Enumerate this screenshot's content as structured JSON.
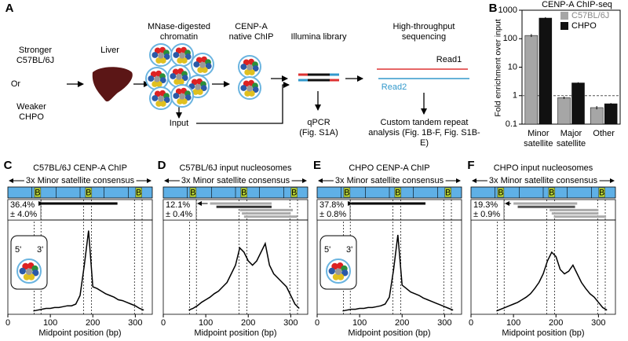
{
  "panel_labels": [
    "A",
    "B",
    "C",
    "D",
    "E",
    "F"
  ],
  "schematic": {
    "stronger": "Stronger C57BL/6J",
    "or": "Or",
    "weaker": "Weaker CHPO",
    "liver": "Liver",
    "chromatin": "MNase-digested chromatin",
    "chip": "CENP-A native ChIP",
    "library": "Illumina library",
    "qpcr": "qPCR (Fig. S1A)",
    "input": "Input",
    "sequencing": "High-throughput sequencing",
    "read1": "Read1",
    "read2": "Read2",
    "analysis": "Custom tandem repeat analysis (Fig. 1B-F, Fig. S1B-E)"
  },
  "chart_data": [
    {
      "type": "bar",
      "title": "CENP-A ChIP-seq",
      "ylabel": "Fold enrichment over input",
      "log_scale": true,
      "categories": [
        "Minor satellite",
        "Major satellite",
        "Other"
      ],
      "series": [
        {
          "name": "C57BL/6J",
          "color": "#a6a6a6",
          "values": [
            130,
            0.85,
            0.38
          ],
          "errors": [
            15,
            0.08,
            0.05
          ]
        },
        {
          "name": "CHPO",
          "color": "#111111",
          "values": [
            530,
            2.8,
            0.52
          ],
          "errors": [
            40,
            0.15,
            0.03
          ]
        }
      ],
      "ylim": [
        0.1,
        1000
      ],
      "yticks": [
        0.1,
        1,
        10,
        100,
        1000
      ],
      "reference_line": 1
    },
    {
      "type": "line",
      "title": "C57BL/6J CENP-A ChIP",
      "consensus_label": "3x Minor satellite consensus",
      "consensus_marker": "B",
      "marker_positions": [
        70,
        190,
        308
      ],
      "percent": "36.4%",
      "error": "± 4.0%",
      "inset_labels": [
        "5'",
        "3'"
      ],
      "fragments": [
        {
          "start": 78,
          "end": 258,
          "color": "#000000"
        }
      ],
      "guide_lines": [
        62,
        78,
        178,
        197,
        298,
        316
      ],
      "x": [
        60,
        70,
        80,
        90,
        100,
        110,
        120,
        130,
        140,
        150,
        160,
        170,
        180,
        190,
        200,
        210,
        220,
        230,
        240,
        250,
        260,
        270,
        280,
        290,
        300,
        310,
        320
      ],
      "series": [
        {
          "color": "#000000",
          "values": [
            2,
            3,
            4,
            5,
            5,
            6,
            6,
            7,
            8,
            8,
            10,
            20,
            55,
            95,
            30,
            28,
            25,
            22,
            20,
            18,
            15,
            14,
            12,
            10,
            8,
            5,
            3
          ]
        }
      ],
      "xlim": [
        0,
        340
      ],
      "xticks": [
        0,
        100,
        200,
        300
      ],
      "ylim": [
        0,
        100
      ],
      "xlabel": "Midpoint position (bp)"
    },
    {
      "type": "line",
      "title": "C57BL/6J input nucleosomes",
      "consensus_label": "3x Minor satellite consensus",
      "consensus_marker": "B",
      "marker_positions": [
        70,
        190,
        308
      ],
      "percent": "12.1%",
      "error": "± 0.4%",
      "fragments": [
        {
          "start": 110,
          "end": 255,
          "color": "#aaaaaa"
        },
        {
          "start": 125,
          "end": 255,
          "color": "#333333"
        },
        {
          "start": 180,
          "end": 305,
          "color": "#aaaaaa"
        },
        {
          "start": 185,
          "end": 300,
          "color": "#aaaaaa"
        },
        {
          "start": 190,
          "end": 315,
          "color": "#aaaaaa"
        }
      ],
      "guide_lines": [
        62,
        78,
        178,
        197,
        298,
        316
      ],
      "x": [
        60,
        70,
        80,
        90,
        100,
        110,
        120,
        130,
        140,
        150,
        160,
        170,
        180,
        190,
        200,
        210,
        220,
        230,
        240,
        250,
        260,
        270,
        280,
        290,
        300,
        310,
        320
      ],
      "series": [
        {
          "color": "#000000",
          "values": [
            3,
            5,
            8,
            12,
            15,
            18,
            22,
            25,
            30,
            35,
            45,
            55,
            75,
            70,
            60,
            55,
            60,
            70,
            80,
            55,
            45,
            40,
            35,
            30,
            20,
            10,
            5
          ]
        }
      ],
      "xlim": [
        0,
        340
      ],
      "xticks": [
        0,
        100,
        200,
        300
      ],
      "ylim": [
        0,
        100
      ],
      "xlabel": "Midpoint position (bp)"
    },
    {
      "type": "line",
      "title": "CHPO CENP-A ChIP",
      "consensus_label": "3x Minor satellite consensus",
      "consensus_marker": "B",
      "marker_positions": [
        70,
        190,
        308
      ],
      "percent": "37.8%",
      "error": "± 0.8%",
      "inset_labels": [
        "5'",
        "3'"
      ],
      "fragments": [
        {
          "start": 80,
          "end": 255,
          "color": "#000000"
        }
      ],
      "guide_lines": [
        62,
        78,
        178,
        197,
        298,
        316
      ],
      "x": [
        60,
        70,
        80,
        90,
        100,
        110,
        120,
        130,
        140,
        150,
        160,
        170,
        180,
        190,
        200,
        210,
        220,
        230,
        240,
        250,
        260,
        270,
        280,
        290,
        300,
        310,
        320
      ],
      "series": [
        {
          "color": "#000000",
          "values": [
            2,
            3,
            4,
            4,
            5,
            5,
            6,
            6,
            7,
            8,
            10,
            18,
            50,
            90,
            32,
            28,
            24,
            22,
            20,
            17,
            15,
            13,
            11,
            9,
            7,
            5,
            3
          ]
        }
      ],
      "xlim": [
        0,
        340
      ],
      "xticks": [
        0,
        100,
        200,
        300
      ],
      "ylim": [
        0,
        100
      ],
      "xlabel": "Midpoint position (bp)"
    },
    {
      "type": "line",
      "title": "CHPO input nucleosomes",
      "consensus_label": "3x Minor satellite consensus",
      "consensus_marker": "B",
      "marker_positions": [
        70,
        190,
        308
      ],
      "percent": "19.3%",
      "error": "± 0.9%",
      "fragments": [
        {
          "start": 100,
          "end": 250,
          "color": "#aaaaaa"
        },
        {
          "start": 110,
          "end": 245,
          "color": "#555555"
        },
        {
          "start": 185,
          "end": 300,
          "color": "#aaaaaa"
        },
        {
          "start": 190,
          "end": 300,
          "color": "#aaaaaa"
        },
        {
          "start": 195,
          "end": 318,
          "color": "#aaaaaa"
        }
      ],
      "guide_lines": [
        62,
        78,
        178,
        197,
        298,
        316
      ],
      "x": [
        60,
        70,
        80,
        90,
        100,
        110,
        120,
        130,
        140,
        150,
        160,
        170,
        180,
        190,
        200,
        210,
        220,
        230,
        240,
        250,
        260,
        270,
        280,
        290,
        300,
        310,
        320
      ],
      "series": [
        {
          "color": "#000000",
          "values": [
            2,
            4,
            6,
            8,
            10,
            12,
            15,
            18,
            22,
            28,
            35,
            45,
            60,
            70,
            65,
            50,
            45,
            48,
            55,
            45,
            35,
            28,
            22,
            18,
            12,
            6,
            3
          ]
        }
      ],
      "xlim": [
        0,
        340
      ],
      "xticks": [
        0,
        100,
        200,
        300
      ],
      "ylim": [
        0,
        100
      ],
      "xlabel": "Midpoint position (bp)"
    }
  ]
}
